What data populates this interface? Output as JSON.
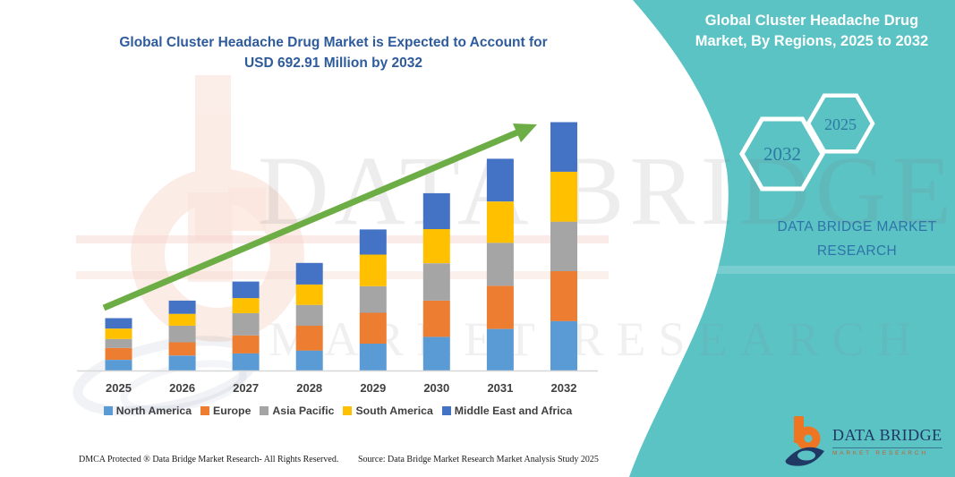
{
  "title": {
    "line1": "Global Cluster Headache Drug Market is Expected to Account for",
    "line2": "USD 692.91 Million by 2032"
  },
  "side_panel": {
    "title": "Global Cluster Headache Drug Market, By Regions, 2025 to 2032",
    "hexagons": [
      "2032",
      "2025"
    ],
    "brand": "DATA BRIDGE MARKET RESEARCH"
  },
  "watermark": {
    "line1": "DATA BRIDGE",
    "line2": "MARKET RESEARCH"
  },
  "chart_data": {
    "type": "bar",
    "stacked": true,
    "title": "Global Cluster Headache Drug Market is Expected to Account for USD 692.91 Million by 2032",
    "unit": "USD Million",
    "categories": [
      "2025",
      "2026",
      "2027",
      "2028",
      "2029",
      "2030",
      "2031",
      "2032"
    ],
    "series": [
      {
        "name": "North America",
        "color": "#5B9BD5",
        "values": [
          31,
          43,
          49,
          57,
          76,
          95,
          117,
          139
        ]
      },
      {
        "name": "Europe",
        "color": "#ED7D31",
        "values": [
          33,
          37,
          50,
          69,
          86,
          101,
          120,
          139
        ]
      },
      {
        "name": "Asia Pacific",
        "color": "#A5A5A5",
        "values": [
          25,
          46,
          62,
          58,
          74,
          104,
          120,
          138
        ]
      },
      {
        "name": "South America",
        "color": "#FFC000",
        "values": [
          29,
          33,
          42,
          57,
          88,
          95,
          115,
          139
        ]
      },
      {
        "name": "Middle East and Africa",
        "color": "#4472C4",
        "values": [
          29,
          37,
          46,
          60,
          70,
          100,
          119,
          138
        ]
      }
    ],
    "annotations": {
      "total_2032_usd_million": 692.91,
      "trend_arrow": true
    },
    "legend_position": "bottom",
    "axes": {
      "x_visible": true,
      "y_visible": false
    }
  },
  "colors": {
    "accent_teal": "#5CC3C5",
    "title_blue": "#2E5B9B",
    "arrow_green": "#6CAE45",
    "hex_label": "#2E7AA0",
    "brand_navy": "#1F3864",
    "brand_orange": "#EE7623"
  },
  "footer": {
    "left": "DMCA Protected ® Data Bridge Market Research-  All Rights Reserved.",
    "right": "Source: Data Bridge Market Research  Market Analysis Study 2025"
  },
  "logo": {
    "name": "DATA BRIDGE",
    "sub": "MARKET RESEARCH"
  }
}
